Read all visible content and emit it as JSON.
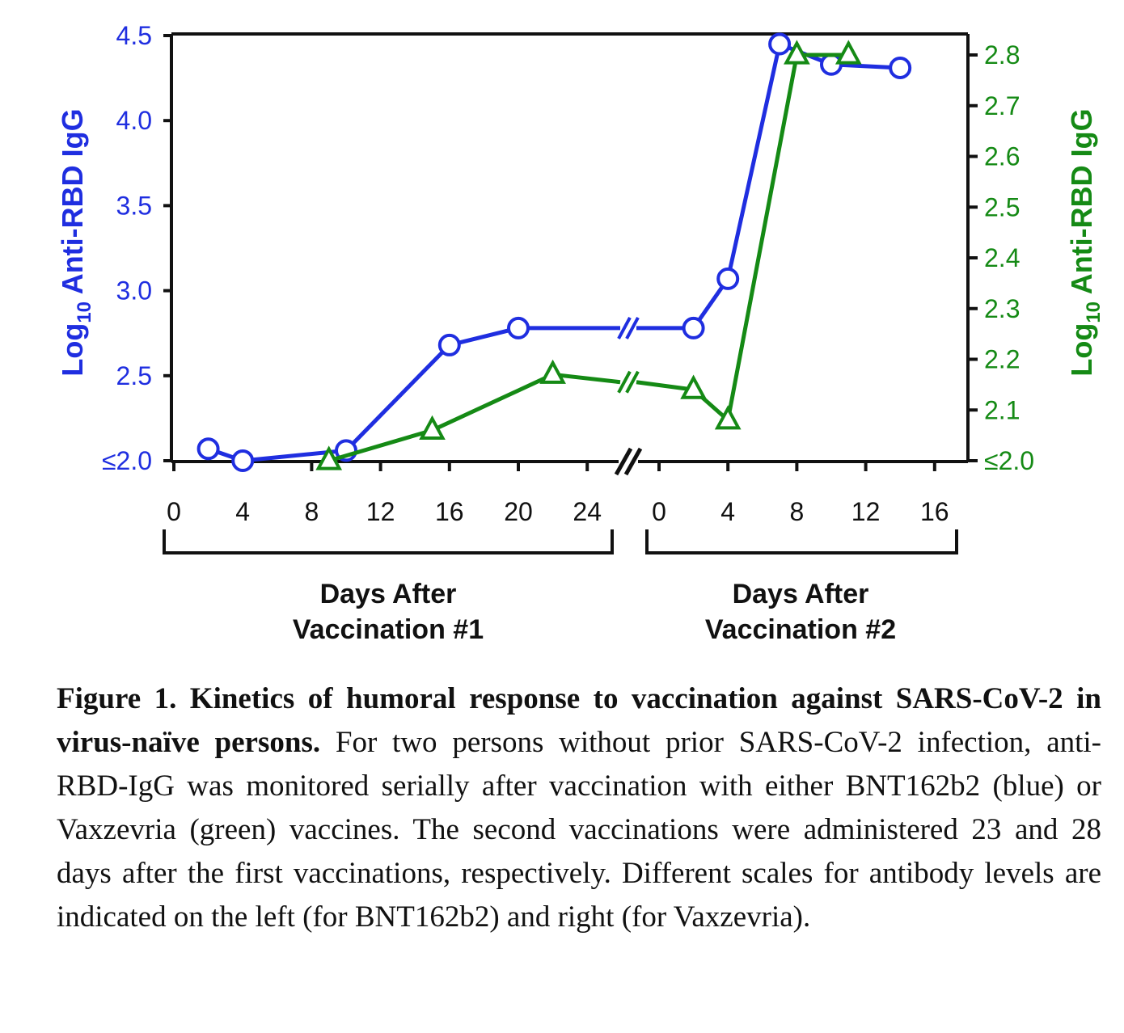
{
  "chart_data": {
    "type": "line",
    "y_left": {
      "label_main": "Log",
      "label_sub": "10",
      "label_rest": " Anti-RBD IgG",
      "color": "#1f2ee0",
      "ticks": [
        {
          "value": 4.5,
          "label": "4.5"
        },
        {
          "value": 4.0,
          "label": "4.0"
        },
        {
          "value": 3.5,
          "label": "3.5"
        },
        {
          "value": 3.0,
          "label": "3.0"
        },
        {
          "value": 2.5,
          "label": "2.5"
        },
        {
          "value": 2.0,
          "label": "≤2.0"
        }
      ],
      "ylim": [
        2.0,
        4.5
      ]
    },
    "y_right": {
      "label_main": "Log",
      "label_sub": "10",
      "label_rest": " Anti-RBD IgG",
      "color": "#158a15",
      "ticks": [
        {
          "value": 2.8,
          "label": "2.8"
        },
        {
          "value": 2.7,
          "label": "2.7"
        },
        {
          "value": 2.6,
          "label": "2.6"
        },
        {
          "value": 2.5,
          "label": "2.5"
        },
        {
          "value": 2.4,
          "label": "2.4"
        },
        {
          "value": 2.3,
          "label": "2.3"
        },
        {
          "value": 2.2,
          "label": "2.2"
        },
        {
          "value": 2.1,
          "label": "2.1"
        },
        {
          "value": 2.0,
          "label": "≤2.0"
        }
      ],
      "ylim": [
        2.0,
        2.8
      ]
    },
    "x_segments": [
      {
        "name": "dose1",
        "ticks": [
          0,
          4,
          8,
          12,
          16,
          20,
          24
        ],
        "group_label_line1": "Days After",
        "group_label_line2": "Vaccination #1"
      },
      {
        "name": "dose2",
        "ticks": [
          0,
          4,
          8,
          12,
          16
        ],
        "group_label_line1": "Days After",
        "group_label_line2": "Vaccination #2"
      }
    ],
    "series": [
      {
        "name": "BNT162b2",
        "axis": "left",
        "marker": "circle",
        "color": "#1f2ee0",
        "segment1": [
          [
            2,
            2.07
          ],
          [
            4,
            2.0
          ],
          [
            10,
            2.06
          ],
          [
            16,
            2.68
          ],
          [
            20,
            2.78
          ]
        ],
        "segment2": [
          [
            2,
            2.78
          ],
          [
            4,
            3.07
          ],
          [
            7,
            4.45
          ],
          [
            10,
            4.33
          ],
          [
            14,
            4.31
          ]
        ]
      },
      {
        "name": "Vaxzevria",
        "axis": "right",
        "marker": "triangle",
        "color": "#158a15",
        "segment1": [
          [
            9,
            2.0
          ],
          [
            15,
            2.06
          ],
          [
            22,
            2.17
          ]
        ],
        "segment2": [
          [
            2,
            2.14
          ],
          [
            4,
            2.08
          ],
          [
            8,
            2.8
          ],
          [
            11,
            2.8
          ]
        ]
      }
    ]
  },
  "caption": {
    "lead": "Figure 1. Kinetics of humoral response to vaccination against SARS-CoV-2 in virus-naïve persons.",
    "body": " For two persons without prior SARS-CoV-2 infection, anti-RBD-IgG was monitored serially after vaccination with either BNT162b2 (blue) or Vaxzevria (green) vaccines. The second vaccinations were administered 23 and 28 days after the first vaccinations, respectively. Different scales for antibody levels are indicated on the left (for BNT162b2) and right (for Vaxzevria)."
  }
}
